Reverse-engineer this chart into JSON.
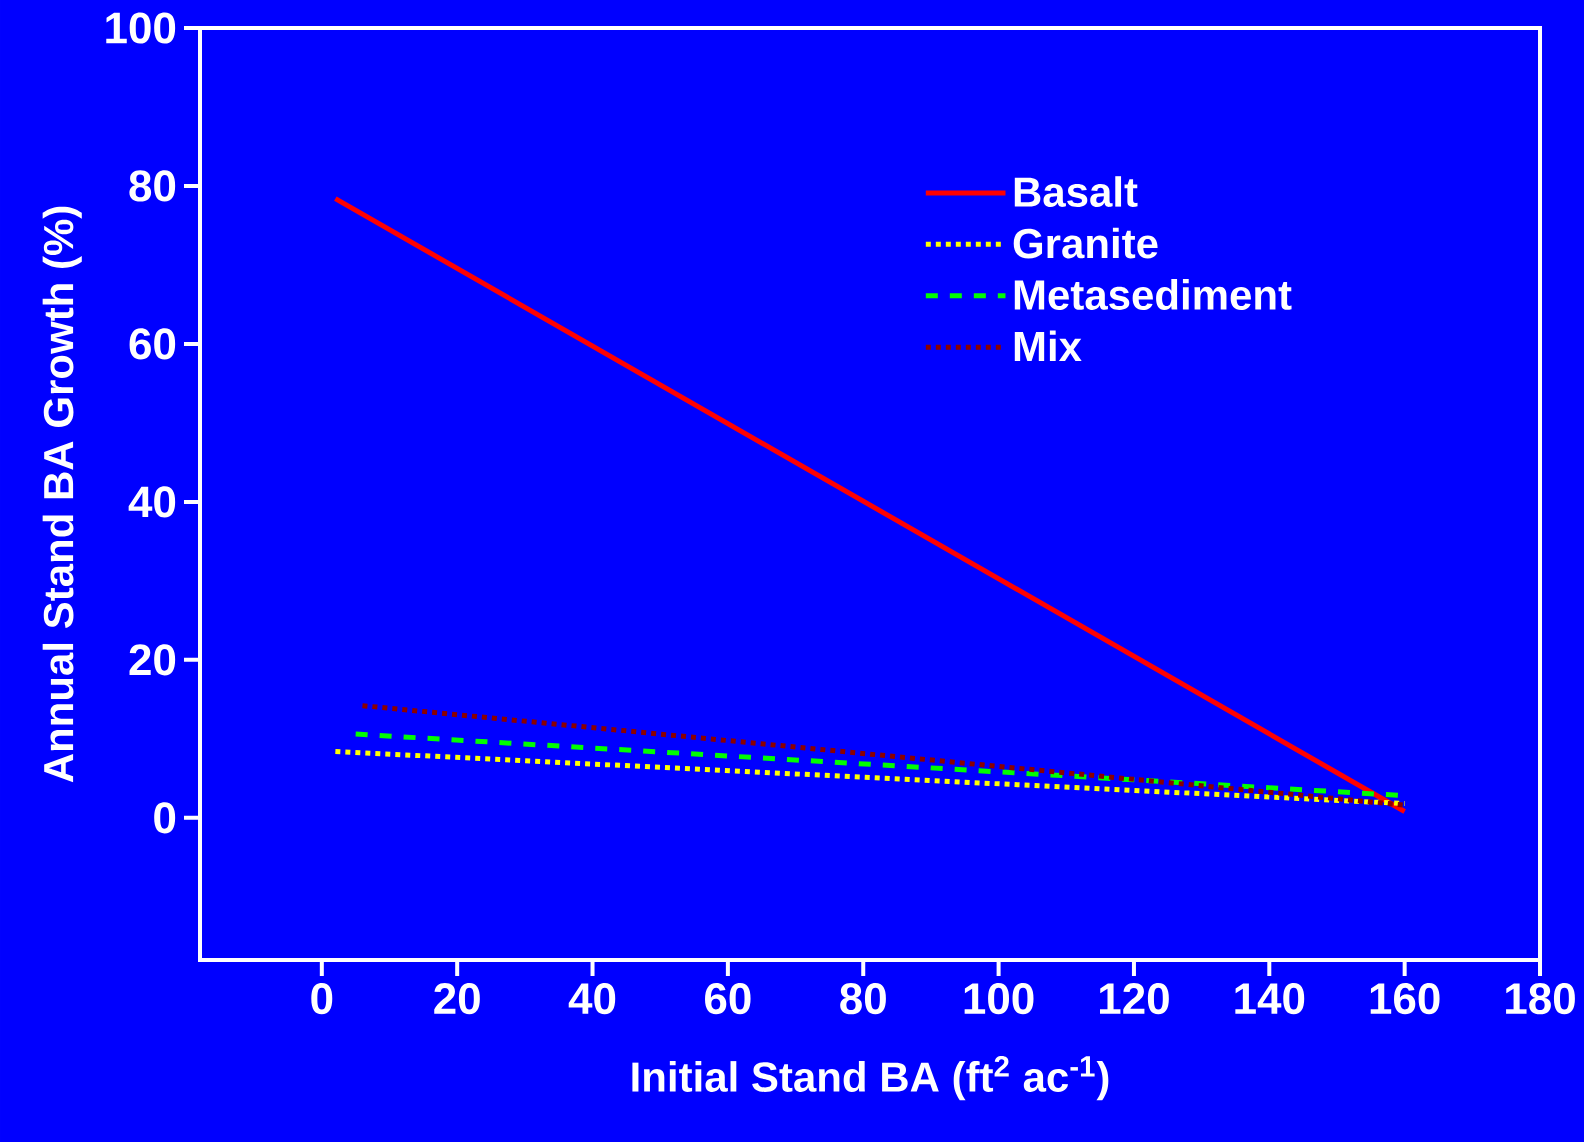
{
  "chart_data": {
    "type": "line",
    "xlabel": "Initial Stand BA (ft$^{2}$ ac$^{-1}$)",
    "ylabel": "Annual Stand BA Growth (%)",
    "series": [
      {
        "name": "Basalt",
        "color": "#ff0000",
        "line_style": "solid",
        "x": [
          2,
          160
        ],
        "values": [
          78.4,
          0.8
        ]
      },
      {
        "name": "Granite",
        "color": "#ffff00",
        "line_style": "dotted",
        "x": [
          2,
          160
        ],
        "values": [
          8.4,
          1.8
        ]
      },
      {
        "name": "Metasediment",
        "color": "#00ff00",
        "line_style": "dashed",
        "x": [
          5,
          160
        ],
        "values": [
          10.6,
          2.8
        ]
      },
      {
        "name": "Mix",
        "color": "#8b0000",
        "line_style": "dotted",
        "x": [
          6,
          160
        ],
        "values": [
          14.2,
          1.6
        ]
      }
    ],
    "xlim": [
      -18,
      180
    ],
    "ylim": [
      -18,
      100
    ],
    "xticks": [
      0,
      20,
      40,
      60,
      80,
      100,
      120,
      140,
      160,
      180
    ],
    "yticks": [
      0,
      20,
      40,
      60,
      80,
      100
    ],
    "grid": false,
    "legend": "top right",
    "marker": "none"
  }
}
